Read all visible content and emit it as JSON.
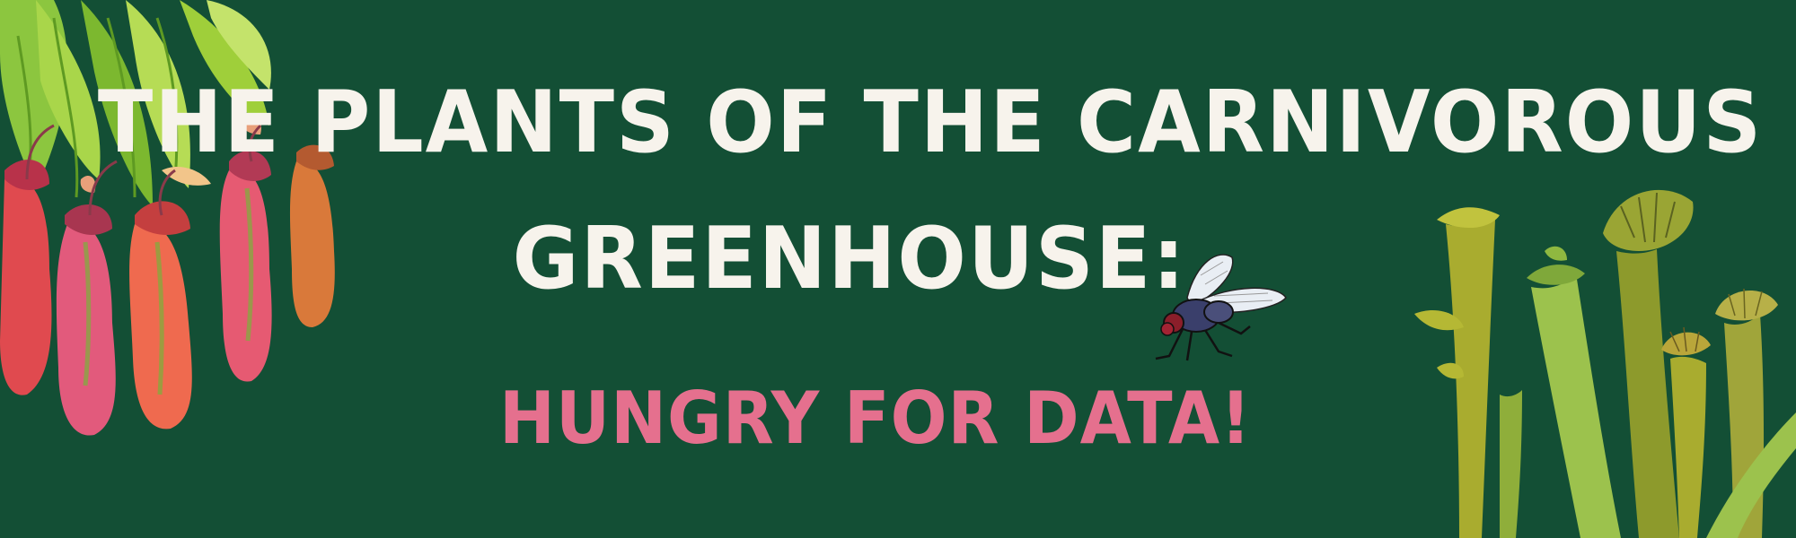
{
  "banner": {
    "title_line_1": "THE PLANTS OF THE CARNIVOROUS",
    "title_line_2": "GREENHOUSE:",
    "subtitle": "HUNGRY FOR DATA!"
  },
  "colors": {
    "background": "#134f35",
    "title": "#f7f3ec",
    "subtitle": "#e5708e",
    "pitcher_red": "#e04a4f",
    "pitcher_pink": "#e25a7c",
    "leaf_green": "#9fcf3a",
    "trumpet_olive": "#a9ac2f",
    "trumpet_light": "#9cc24d"
  },
  "decorations": {
    "left": "nepenthes-pitcher-plant-illustration",
    "right": "sarracenia-trumpet-pitcher-illustration",
    "accent": "housefly-icon"
  }
}
